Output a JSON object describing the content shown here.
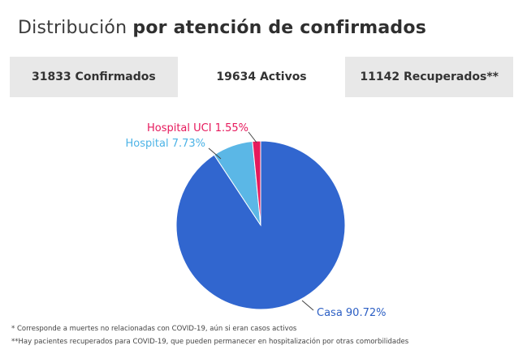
{
  "title": {
    "light": "Distribución",
    "bold": "por atención de confirmados"
  },
  "tabs": [
    {
      "label": "31833 Confirmados",
      "active": false
    },
    {
      "label": "19634 Activos",
      "active": true
    },
    {
      "label": "11142 Recuperados**",
      "active": false
    }
  ],
  "chart_data": {
    "type": "pie",
    "slices": [
      {
        "name": "Hospital UCI",
        "value": 1.55,
        "label": "Hospital UCI 1.55%",
        "color": "#e6195c",
        "label_color": "#e6195c"
      },
      {
        "name": "Hospital",
        "value": 7.73,
        "label": "Hospital 7.73%",
        "color": "#5bb7e6",
        "label_color": "#4cb3e6"
      },
      {
        "name": "Casa",
        "value": 90.72,
        "label": "Casa 90.72%",
        "color": "#3166cf",
        "label_color": "#2c5fc4"
      }
    ]
  },
  "notes": [
    "* Corresponde a muertes no relacionadas con COVID-19, aún si eran casos activos",
    "**Hay pacientes recuperados para COVID-19, que pueden permanecer en hospitalización por otras comorbilidades"
  ]
}
